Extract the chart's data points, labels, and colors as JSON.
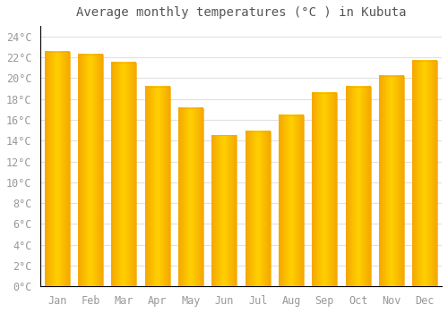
{
  "title": "Average monthly temperatures (°C ) in Kubuta",
  "months": [
    "Jan",
    "Feb",
    "Mar",
    "Apr",
    "May",
    "Jun",
    "Jul",
    "Aug",
    "Sep",
    "Oct",
    "Nov",
    "Dec"
  ],
  "temperatures": [
    22.5,
    22.3,
    21.5,
    19.2,
    17.1,
    14.5,
    14.9,
    16.4,
    18.6,
    19.2,
    20.2,
    21.7
  ],
  "bar_color_center": "#FFD000",
  "bar_color_edge": "#F5A800",
  "background_color": "#FFFFFF",
  "grid_color": "#E0E0E0",
  "ylim": [
    0,
    25
  ],
  "yticks": [
    0,
    2,
    4,
    6,
    8,
    10,
    12,
    14,
    16,
    18,
    20,
    22,
    24
  ],
  "title_fontsize": 10,
  "tick_fontsize": 8.5,
  "tick_color": "#999999",
  "font_family": "monospace",
  "bar_width": 0.75
}
